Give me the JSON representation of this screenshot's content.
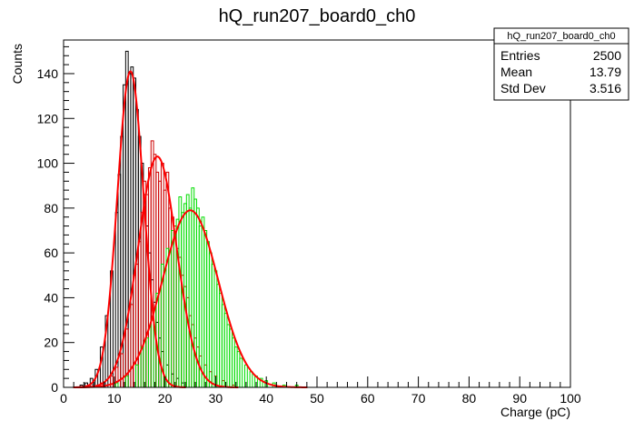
{
  "chart_data": {
    "type": "histogram",
    "title": "hQ_run207_board0_ch0",
    "xlabel": "Charge (pC)",
    "ylabel": "Counts",
    "xlim": [
      0,
      100
    ],
    "ylim": [
      0,
      155
    ],
    "x_ticks": [
      0,
      10,
      20,
      30,
      40,
      50,
      60,
      70,
      80,
      90,
      100
    ],
    "y_ticks": [
      0,
      20,
      40,
      60,
      80,
      100,
      120,
      140
    ],
    "bin_width": 0.5,
    "series": [
      {
        "color": "#000000",
        "bins": [
          {
            "x": 3.5,
            "y": 1
          },
          {
            "x": 4.5,
            "y": 2
          },
          {
            "x": 5.5,
            "y": 4
          },
          {
            "x": 6.5,
            "y": 8
          },
          {
            "x": 7.5,
            "y": 18
          },
          {
            "x": 8.5,
            "y": 32
          },
          {
            "x": 9.5,
            "y": 52
          },
          {
            "x": 10.5,
            "y": 78
          },
          {
            "x": 11.0,
            "y": 95
          },
          {
            "x": 11.5,
            "y": 112
          },
          {
            "x": 12.0,
            "y": 135
          },
          {
            "x": 12.5,
            "y": 150
          },
          {
            "x": 13.0,
            "y": 140
          },
          {
            "x": 13.5,
            "y": 143
          },
          {
            "x": 14.0,
            "y": 138
          },
          {
            "x": 14.5,
            "y": 124
          },
          {
            "x": 15.0,
            "y": 112
          },
          {
            "x": 15.5,
            "y": 100
          },
          {
            "x": 16.0,
            "y": 86
          },
          {
            "x": 16.5,
            "y": 72
          },
          {
            "x": 17.0,
            "y": 60
          },
          {
            "x": 17.5,
            "y": 48
          },
          {
            "x": 18.0,
            "y": 38
          },
          {
            "x": 18.5,
            "y": 29
          },
          {
            "x": 19.0,
            "y": 22
          },
          {
            "x": 19.5,
            "y": 16
          },
          {
            "x": 20.5,
            "y": 10
          },
          {
            "x": 21.5,
            "y": 6
          },
          {
            "x": 22.5,
            "y": 4
          },
          {
            "x": 23.5,
            "y": 2
          }
        ],
        "fit": {
          "type": "gaus",
          "constant": 141,
          "mean": 13.2,
          "sigma": 2.6
        }
      },
      {
        "color": "#cc0000",
        "bins": [
          {
            "x": 7.5,
            "y": 2
          },
          {
            "x": 9.5,
            "y": 5
          },
          {
            "x": 10.5,
            "y": 9
          },
          {
            "x": 11.5,
            "y": 15
          },
          {
            "x": 12.5,
            "y": 26
          },
          {
            "x": 13.5,
            "y": 37
          },
          {
            "x": 14.0,
            "y": 50
          },
          {
            "x": 14.5,
            "y": 55
          },
          {
            "x": 15.0,
            "y": 65
          },
          {
            "x": 15.5,
            "y": 78
          },
          {
            "x": 16.0,
            "y": 92
          },
          {
            "x": 16.5,
            "y": 86
          },
          {
            "x": 17.0,
            "y": 98
          },
          {
            "x": 17.5,
            "y": 110
          },
          {
            "x": 18.0,
            "y": 104
          },
          {
            "x": 18.5,
            "y": 96
          },
          {
            "x": 19.0,
            "y": 92
          },
          {
            "x": 19.5,
            "y": 100
          },
          {
            "x": 20.0,
            "y": 88
          },
          {
            "x": 20.5,
            "y": 96
          },
          {
            "x": 21.0,
            "y": 80
          },
          {
            "x": 21.5,
            "y": 76
          },
          {
            "x": 22.0,
            "y": 72
          },
          {
            "x": 22.5,
            "y": 62
          },
          {
            "x": 23.0,
            "y": 58
          },
          {
            "x": 23.5,
            "y": 50
          },
          {
            "x": 24.0,
            "y": 45
          },
          {
            "x": 24.5,
            "y": 40
          },
          {
            "x": 25.0,
            "y": 32
          },
          {
            "x": 25.5,
            "y": 28
          },
          {
            "x": 26.0,
            "y": 22
          },
          {
            "x": 26.5,
            "y": 18
          },
          {
            "x": 27.0,
            "y": 14
          },
          {
            "x": 28.0,
            "y": 10
          },
          {
            "x": 29.0,
            "y": 7
          },
          {
            "x": 30.0,
            "y": 5
          },
          {
            "x": 31.5,
            "y": 3
          },
          {
            "x": 33.5,
            "y": 1
          }
        ],
        "fit": {
          "type": "gaus",
          "constant": 103,
          "mean": 18.5,
          "sigma": 3.8
        }
      },
      {
        "color": "#00dd00",
        "bins": [
          {
            "x": 10.5,
            "y": 2
          },
          {
            "x": 12.5,
            "y": 5
          },
          {
            "x": 14.5,
            "y": 10
          },
          {
            "x": 15.5,
            "y": 18
          },
          {
            "x": 16.5,
            "y": 22
          },
          {
            "x": 17.5,
            "y": 30
          },
          {
            "x": 18.5,
            "y": 42
          },
          {
            "x": 19.5,
            "y": 55
          },
          {
            "x": 20.5,
            "y": 62
          },
          {
            "x": 21.5,
            "y": 70
          },
          {
            "x": 22.5,
            "y": 75
          },
          {
            "x": 23.0,
            "y": 85
          },
          {
            "x": 23.5,
            "y": 78
          },
          {
            "x": 24.0,
            "y": 82
          },
          {
            "x": 24.5,
            "y": 86
          },
          {
            "x": 25.0,
            "y": 80
          },
          {
            "x": 25.5,
            "y": 89
          },
          {
            "x": 26.0,
            "y": 84
          },
          {
            "x": 26.5,
            "y": 80
          },
          {
            "x": 27.0,
            "y": 72
          },
          {
            "x": 27.5,
            "y": 76
          },
          {
            "x": 28.0,
            "y": 70
          },
          {
            "x": 28.5,
            "y": 65
          },
          {
            "x": 29.0,
            "y": 60
          },
          {
            "x": 29.5,
            "y": 55
          },
          {
            "x": 30.0,
            "y": 52
          },
          {
            "x": 30.5,
            "y": 46
          },
          {
            "x": 31.0,
            "y": 42
          },
          {
            "x": 31.5,
            "y": 37
          },
          {
            "x": 32.0,
            "y": 33
          },
          {
            "x": 32.5,
            "y": 28
          },
          {
            "x": 33.0,
            "y": 26
          },
          {
            "x": 33.5,
            "y": 22
          },
          {
            "x": 34.0,
            "y": 18
          },
          {
            "x": 34.5,
            "y": 16
          },
          {
            "x": 35.0,
            "y": 13
          },
          {
            "x": 36.0,
            "y": 10
          },
          {
            "x": 37.0,
            "y": 7
          },
          {
            "x": 38.0,
            "y": 5
          },
          {
            "x": 39.0,
            "y": 4
          },
          {
            "x": 40.0,
            "y": 3
          },
          {
            "x": 41.5,
            "y": 2
          },
          {
            "x": 43.5,
            "y": 1
          },
          {
            "x": 46.0,
            "y": 1
          }
        ],
        "fit": {
          "type": "gaus",
          "constant": 79,
          "mean": 25.0,
          "sigma": 5.5
        }
      }
    ],
    "fit_color": "#ff0000",
    "stats_box": {
      "name": "hQ_run207_board0_ch0",
      "rows": [
        {
          "label": "Entries",
          "value": "2500"
        },
        {
          "label": "Mean",
          "value": "13.79"
        },
        {
          "label": "Std Dev",
          "value": "3.516"
        }
      ]
    }
  }
}
